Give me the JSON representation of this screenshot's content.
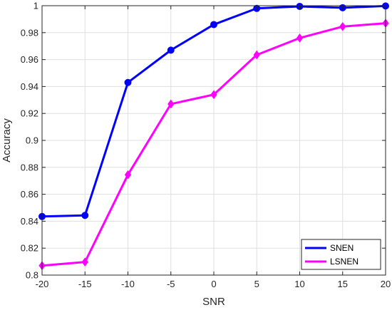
{
  "chart_data": {
    "type": "line",
    "xlabel": "SNR",
    "ylabel": "Accuracy",
    "x": [
      -20,
      -15,
      -10,
      -5,
      0,
      5,
      10,
      15,
      20
    ],
    "xlim": [
      -20,
      20
    ],
    "ylim": [
      0.8,
      1.0
    ],
    "xticks": [
      "-20",
      "-15",
      "-10",
      "-5",
      "0",
      "5",
      "10",
      "15",
      "20"
    ],
    "yticks": [
      "0.8",
      "0.82",
      "0.84",
      "0.86",
      "0.88",
      "0.9",
      "0.92",
      "0.94",
      "0.96",
      "0.98",
      "1"
    ],
    "grid": true,
    "legend_position": "bottom-right",
    "series": [
      {
        "name": "SNEN",
        "color": "#0000ff",
        "marker": "circle",
        "values": [
          0.8435,
          0.8443,
          0.943,
          0.967,
          0.986,
          0.998,
          0.9995,
          0.9985,
          0.9998
        ]
      },
      {
        "name": "LSNEN",
        "color": "#ff00ff",
        "marker": "diamond",
        "values": [
          0.807,
          0.8097,
          0.8745,
          0.927,
          0.934,
          0.9635,
          0.976,
          0.9845,
          0.987
        ]
      }
    ]
  }
}
